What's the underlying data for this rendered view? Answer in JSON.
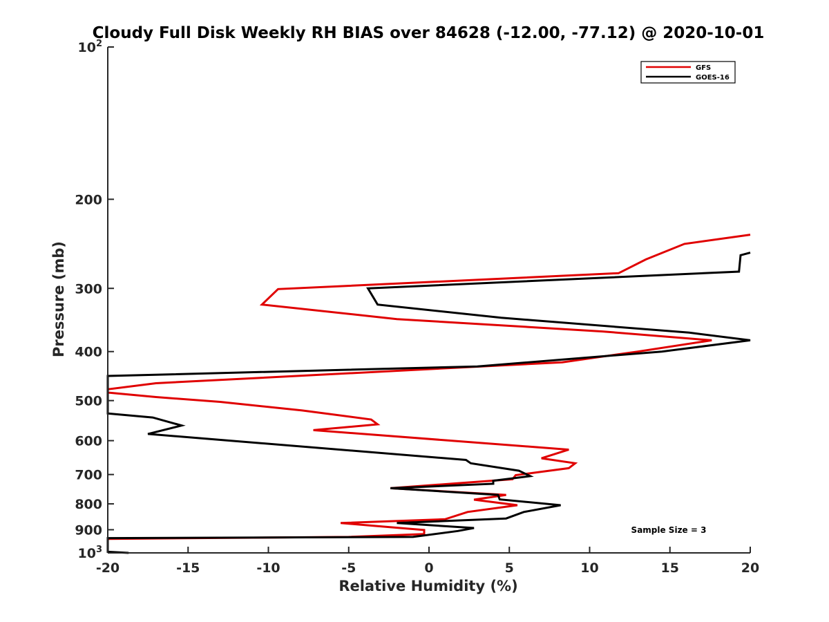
{
  "chart_data": {
    "type": "line",
    "title": "Cloudy Full Disk Weekly RH BIAS over 84628 (-12.00, -77.12) @ 2020-10-01",
    "xlabel": "Relative Humidity (%)",
    "ylabel": "Pressure (mb)",
    "xlim": [
      -20,
      20
    ],
    "ylim": [
      100,
      1000
    ],
    "y_scale": "log",
    "y_reversed": true,
    "grid": false,
    "legend_position": "top-right",
    "x_ticks": [
      "-20",
      "-15",
      "-10",
      "-5",
      "0",
      "5",
      "10",
      "15",
      "20"
    ],
    "y_ticks": [
      {
        "value": 100,
        "label": "10",
        "sup": "2"
      },
      {
        "value": 200,
        "label": "200",
        "sup": ""
      },
      {
        "value": 300,
        "label": "300",
        "sup": ""
      },
      {
        "value": 400,
        "label": "400",
        "sup": ""
      },
      {
        "value": 500,
        "label": "500",
        "sup": ""
      },
      {
        "value": 600,
        "label": "600",
        "sup": ""
      },
      {
        "value": 700,
        "label": "700",
        "sup": ""
      },
      {
        "value": 800,
        "label": "800",
        "sup": ""
      },
      {
        "value": 900,
        "label": "900",
        "sup": ""
      },
      {
        "value": 1000,
        "label": "10",
        "sup": "3"
      }
    ],
    "series": [
      {
        "name": "GFS",
        "color": "#e00000",
        "points": [
          [
            20,
            235
          ],
          [
            15.9,
            245
          ],
          [
            13.5,
            263
          ],
          [
            11.8,
            280
          ],
          [
            -9.4,
            301
          ],
          [
            -10.4,
            323
          ],
          [
            -2.0,
            345
          ],
          [
            10.8,
            365
          ],
          [
            17.6,
            380
          ],
          [
            13.0,
            400
          ],
          [
            8.3,
            420
          ],
          [
            -17.0,
            462
          ],
          [
            -20,
            475
          ],
          [
            -20,
            482
          ],
          [
            -17.0,
            492
          ],
          [
            -13.0,
            503
          ],
          [
            -7.9,
            523
          ],
          [
            -3.6,
            545
          ],
          [
            -3.2,
            557
          ],
          [
            -7.2,
            572
          ],
          [
            8.7,
            625
          ],
          [
            7.0,
            650
          ],
          [
            9.1,
            665
          ],
          [
            8.7,
            680
          ],
          [
            5.4,
            702
          ],
          [
            5.2,
            715
          ],
          [
            -2.4,
            745
          ],
          [
            4.8,
            768
          ],
          [
            2.8,
            785
          ],
          [
            5.5,
            805
          ],
          [
            2.4,
            830
          ],
          [
            1.0,
            858
          ],
          [
            -5.5,
            873
          ],
          [
            -0.3,
            901
          ],
          [
            -0.3,
            918
          ],
          [
            -5.0,
            930
          ],
          [
            -20,
            938
          ]
        ]
      },
      {
        "name": "GOES-16",
        "color": "#000000",
        "points": [
          [
            20,
            255
          ],
          [
            19.4,
            258
          ],
          [
            19.3,
            278
          ],
          [
            -3.8,
            300
          ],
          [
            -3.2,
            323
          ],
          [
            4.5,
            343
          ],
          [
            16.2,
            367
          ],
          [
            20,
            380
          ],
          [
            14.5,
            400
          ],
          [
            3.0,
            428
          ],
          [
            -20,
            447
          ],
          [
            -20,
            530
          ],
          [
            -17.2,
            540
          ],
          [
            -15.4,
            560
          ],
          [
            -17.5,
            582
          ],
          [
            2.3,
            655
          ],
          [
            2.6,
            665
          ],
          [
            5.6,
            688
          ],
          [
            6.3,
            705
          ],
          [
            4.0,
            720
          ],
          [
            4.0,
            730
          ],
          [
            -2.4,
            745
          ],
          [
            4.3,
            768
          ],
          [
            4.4,
            784
          ],
          [
            8.2,
            805
          ],
          [
            5.9,
            830
          ],
          [
            4.8,
            855
          ],
          [
            -2.0,
            873
          ],
          [
            2.8,
            893
          ],
          [
            1.8,
            905
          ],
          [
            -1.0,
            930
          ],
          [
            -20,
            935
          ],
          [
            -20,
            995
          ],
          [
            -18.7,
            1000
          ]
        ]
      }
    ],
    "annotation": "Sample Size = 3"
  }
}
